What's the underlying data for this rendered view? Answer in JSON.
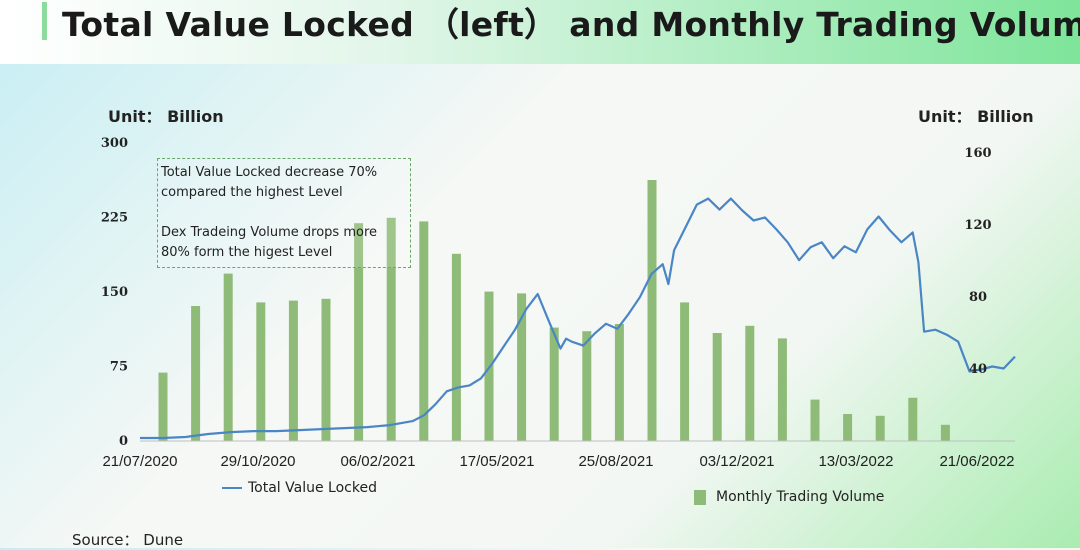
{
  "title": "Total Value Locked （left） and  Monthly Trading Volume",
  "unit_left": "Unit： Billion",
  "unit_right": "Unit： Billion",
  "annotation": {
    "line1": "Total Value Locked decrease 70%",
    "line2": "compared the highest Level",
    "line3": "Dex Tradeing Volume drops  more",
    "line4": "80% form the higest Level"
  },
  "legend_line": "Total Value Locked",
  "legend_bar": "Monthly Trading Volume",
  "source": "Source： Dune",
  "colors": {
    "line": "#4a86c5",
    "bar": "#8fbb78"
  },
  "chart_data": {
    "type": "bar+line",
    "x_ticks": [
      "21/07/2020",
      "29/10/2020",
      "06/02/2021",
      "17/05/2021",
      "25/08/2021",
      "03/12/2021",
      "13/03/2022",
      "21/06/2022"
    ],
    "left_axis": {
      "ticks": [
        "0",
        "75",
        "150",
        "225",
        "300"
      ],
      "range": [
        0,
        300
      ]
    },
    "right_axis": {
      "ticks": [
        "40",
        "80",
        "120",
        "160"
      ],
      "range": [
        0,
        160
      ]
    },
    "bars": {
      "name": "Monthly Trading Volume",
      "axis": "right",
      "values": [
        38,
        75,
        93,
        77,
        78,
        79,
        121,
        124,
        122,
        104,
        83,
        82,
        63,
        61,
        65,
        145,
        77,
        60,
        64,
        57,
        23,
        15,
        14,
        24,
        9
      ]
    },
    "line": {
      "name": "Total Value Locked",
      "axis": "left",
      "points": [
        [
          0,
          3
        ],
        [
          2,
          3
        ],
        [
          4,
          4
        ],
        [
          6,
          7
        ],
        [
          8,
          9
        ],
        [
          10,
          10
        ],
        [
          12,
          10
        ],
        [
          14,
          11
        ],
        [
          16,
          12
        ],
        [
          18,
          13
        ],
        [
          20,
          14
        ],
        [
          22,
          16
        ],
        [
          24,
          20
        ],
        [
          25,
          26
        ],
        [
          26,
          37
        ],
        [
          27,
          50
        ],
        [
          28,
          54
        ],
        [
          29,
          56
        ],
        [
          30,
          63
        ],
        [
          31,
          78
        ],
        [
          32,
          95
        ],
        [
          33,
          112
        ],
        [
          34,
          133
        ],
        [
          35,
          148
        ],
        [
          36,
          120
        ],
        [
          37,
          93
        ],
        [
          37.5,
          103
        ],
        [
          38,
          100
        ],
        [
          39,
          96
        ],
        [
          40,
          108
        ],
        [
          41,
          118
        ],
        [
          42,
          113
        ],
        [
          43,
          128
        ],
        [
          44,
          145
        ],
        [
          45,
          168
        ],
        [
          46,
          178
        ],
        [
          46.5,
          158
        ],
        [
          47,
          192
        ],
        [
          48,
          215
        ],
        [
          49,
          238
        ],
        [
          50,
          244
        ],
        [
          51,
          233
        ],
        [
          52,
          244
        ],
        [
          53,
          232
        ],
        [
          54,
          222
        ],
        [
          55,
          225
        ],
        [
          56,
          213
        ],
        [
          57,
          200
        ],
        [
          58,
          182
        ],
        [
          59,
          195
        ],
        [
          60,
          200
        ],
        [
          61,
          184
        ],
        [
          62,
          196
        ],
        [
          63,
          190
        ],
        [
          64,
          213
        ],
        [
          65,
          226
        ],
        [
          66,
          212
        ],
        [
          67,
          200
        ],
        [
          68,
          210
        ],
        [
          68.5,
          180
        ],
        [
          69,
          110
        ],
        [
          70,
          112
        ],
        [
          71,
          107
        ],
        [
          72,
          100
        ],
        [
          73,
          70
        ],
        [
          74,
          72
        ],
        [
          75,
          75
        ],
        [
          76,
          73
        ],
        [
          77,
          85
        ]
      ]
    }
  }
}
